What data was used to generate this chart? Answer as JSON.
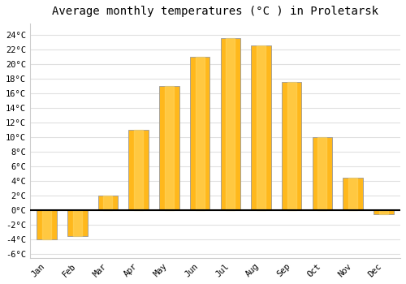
{
  "months": [
    "Jan",
    "Feb",
    "Mar",
    "Apr",
    "May",
    "Jun",
    "Jul",
    "Aug",
    "Sep",
    "Oct",
    "Nov",
    "Dec"
  ],
  "temperatures": [
    -4,
    -3.5,
    2,
    11,
    17,
    21,
    23.5,
    22.5,
    17.5,
    10,
    4.5,
    -0.5
  ],
  "bar_color": "#FFB81C",
  "bar_edge_color": "#999999",
  "title": "Average monthly temperatures (°C ) in Proletarsk",
  "title_fontsize": 10,
  "ylabel_ticks": [
    "-6°C",
    "-4°C",
    "-2°C",
    "0°C",
    "2°C",
    "4°C",
    "6°C",
    "8°C",
    "10°C",
    "12°C",
    "14°C",
    "16°C",
    "18°C",
    "20°C",
    "22°C",
    "24°C"
  ],
  "ytick_values": [
    -6,
    -4,
    -2,
    0,
    2,
    4,
    6,
    8,
    10,
    12,
    14,
    16,
    18,
    20,
    22,
    24
  ],
  "ylim": [
    -6.5,
    25.5
  ],
  "background_color": "#ffffff",
  "grid_color": "#e0e0e0",
  "tick_fontsize": 7.5,
  "font_family": "monospace",
  "bar_width": 0.65
}
